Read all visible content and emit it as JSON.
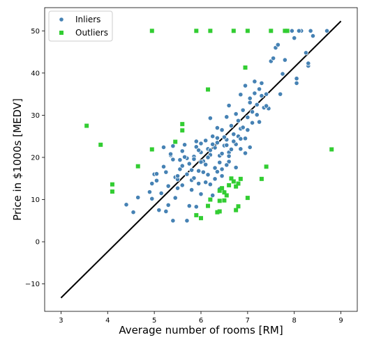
{
  "chart_data": {
    "type": "scatter",
    "title": "",
    "xlabel": "Average number of rooms [RM]",
    "ylabel": "Price in $1000s [MEDV]",
    "xlim": [
      2.65,
      9.35
    ],
    "ylim": [
      -16.5,
      55.5
    ],
    "xticks": [
      3,
      4,
      5,
      6,
      7,
      8,
      9
    ],
    "yticks": [
      -10,
      0,
      10,
      20,
      30,
      40,
      50
    ],
    "grid": false,
    "legend_position": "top-left",
    "colors": {
      "inliers": "#4682b4",
      "outliers": "#32cd32",
      "fit_line": "#000000"
    },
    "series": [
      {
        "name": "Inliers",
        "marker": "circle",
        "points": [
          [
            4.4,
            8.8
          ],
          [
            4.55,
            7.0
          ],
          [
            4.65,
            10.5
          ],
          [
            4.9,
            11.8
          ],
          [
            4.95,
            13.8
          ],
          [
            5.0,
            16.0
          ],
          [
            5.05,
            14.5
          ],
          [
            5.1,
            7.5
          ],
          [
            4.95,
            10.2
          ],
          [
            5.2,
            17.8
          ],
          [
            5.25,
            16.5
          ],
          [
            5.3,
            13.2
          ],
          [
            5.35,
            20.5
          ],
          [
            5.4,
            19.5
          ],
          [
            5.45,
            15.3
          ],
          [
            5.5,
            14.8
          ],
          [
            5.55,
            17.2
          ],
          [
            5.6,
            21.5
          ],
          [
            5.65,
            23.0
          ],
          [
            5.7,
            19.8
          ],
          [
            5.75,
            18.5
          ],
          [
            5.8,
            14.6
          ],
          [
            5.85,
            20.2
          ],
          [
            5.9,
            22.5
          ],
          [
            5.95,
            16.8
          ],
          [
            6.0,
            21.2
          ],
          [
            6.05,
            19.1
          ],
          [
            6.1,
            24.0
          ],
          [
            6.15,
            22.0
          ],
          [
            6.2,
            20.6
          ],
          [
            6.25,
            25.0
          ],
          [
            6.3,
            17.5
          ],
          [
            6.35,
            23.5
          ],
          [
            6.4,
            20.4
          ],
          [
            6.45,
            26.5
          ],
          [
            6.5,
            22.8
          ],
          [
            6.55,
            24.2
          ],
          [
            6.6,
            19.0
          ],
          [
            6.65,
            27.5
          ],
          [
            6.7,
            25.5
          ],
          [
            6.75,
            23.1
          ],
          [
            6.8,
            28.7
          ],
          [
            6.85,
            26.8
          ],
          [
            6.9,
            31.2
          ],
          [
            6.95,
            24.5
          ],
          [
            7.0,
            29.5
          ],
          [
            7.05,
            33.0
          ],
          [
            7.1,
            30.8
          ],
          [
            7.15,
            35.2
          ],
          [
            7.2,
            32.5
          ],
          [
            7.25,
            36.2
          ],
          [
            7.3,
            34.6
          ],
          [
            7.35,
            31.8
          ],
          [
            7.4,
            35.0
          ],
          [
            7.5,
            42.8
          ],
          [
            7.6,
            46.0
          ],
          [
            7.7,
            35.0
          ],
          [
            7.75,
            39.8
          ],
          [
            7.8,
            43.1
          ],
          [
            7.85,
            50.0
          ],
          [
            7.95,
            50.0
          ],
          [
            8.0,
            48.3
          ],
          [
            8.05,
            38.7
          ],
          [
            8.15,
            50.0
          ],
          [
            8.25,
            44.8
          ],
          [
            8.3,
            41.7
          ],
          [
            8.35,
            50.0
          ],
          [
            8.4,
            48.8
          ],
          [
            8.7,
            50.0
          ],
          [
            5.3,
            8.7
          ],
          [
            5.45,
            10.4
          ],
          [
            5.5,
            12.7
          ],
          [
            5.6,
            13.4
          ],
          [
            5.7,
            5.0
          ],
          [
            5.75,
            8.5
          ],
          [
            5.8,
            12.3
          ],
          [
            5.9,
            8.3
          ],
          [
            5.95,
            13.8
          ],
          [
            6.0,
            11.3
          ],
          [
            6.1,
            14.1
          ],
          [
            6.2,
            13.6
          ],
          [
            6.25,
            11.0
          ],
          [
            6.3,
            14.9
          ],
          [
            6.4,
            12.5
          ],
          [
            6.45,
            15.6
          ],
          [
            6.5,
            11.8
          ],
          [
            5.4,
            5.0
          ],
          [
            5.25,
            7.2
          ],
          [
            5.15,
            11.5
          ],
          [
            5.6,
            18.0
          ],
          [
            5.7,
            16.0
          ],
          [
            5.8,
            17.0
          ],
          [
            5.9,
            23.8
          ],
          [
            6.0,
            23.3
          ],
          [
            6.1,
            18.3
          ],
          [
            6.2,
            21.7
          ],
          [
            6.3,
            22.3
          ],
          [
            6.4,
            18.8
          ],
          [
            6.5,
            24.8
          ],
          [
            6.6,
            21.2
          ],
          [
            6.7,
            23.8
          ],
          [
            6.8,
            25.0
          ],
          [
            6.9,
            27.1
          ],
          [
            7.0,
            26.5
          ],
          [
            7.1,
            28.2
          ],
          [
            7.2,
            30.1
          ],
          [
            6.55,
            29.6
          ],
          [
            6.6,
            32.3
          ],
          [
            6.75,
            30.3
          ],
          [
            6.95,
            37.0
          ],
          [
            7.15,
            38.0
          ],
          [
            6.2,
            29.3
          ],
          [
            6.35,
            27.0
          ],
          [
            6.0,
            18.9
          ],
          [
            6.05,
            16.5
          ],
          [
            5.95,
            21.7
          ],
          [
            6.15,
            20.0
          ],
          [
            6.25,
            23.1
          ],
          [
            6.45,
            20.9
          ],
          [
            6.55,
            22.9
          ],
          [
            6.65,
            21.9
          ],
          [
            6.85,
            24.4
          ],
          [
            7.05,
            22.4
          ],
          [
            5.55,
            19.4
          ],
          [
            5.65,
            20.1
          ],
          [
            5.85,
            19.6
          ],
          [
            6.35,
            24.6
          ],
          [
            6.55,
            18.2
          ],
          [
            6.75,
            17.6
          ],
          [
            6.95,
            21.0
          ],
          [
            5.85,
            15.1
          ],
          [
            6.15,
            15.9
          ],
          [
            6.35,
            16.6
          ],
          [
            6.45,
            17.2
          ],
          [
            5.05,
            16.1
          ],
          [
            5.5,
            15.6
          ],
          [
            5.2,
            22.4
          ],
          [
            5.4,
            22.7
          ],
          [
            5.35,
            20.8
          ],
          [
            7.45,
            31.6
          ],
          [
            7.3,
            37.6
          ],
          [
            7.4,
            32.2
          ],
          [
            6.85,
            34.9
          ],
          [
            7.05,
            34.0
          ],
          [
            6.6,
            20.3
          ],
          [
            6.85,
            22.0
          ],
          [
            7.25,
            28.4
          ],
          [
            7.55,
            43.5
          ],
          [
            7.65,
            46.7
          ],
          [
            8.1,
            50.0
          ],
          [
            8.3,
            42.3
          ],
          [
            8.05,
            37.6
          ],
          [
            7.8,
            50.0
          ]
        ]
      },
      {
        "name": "Outliers",
        "marker": "square",
        "points": [
          [
            3.55,
            27.5
          ],
          [
            3.85,
            23.0
          ],
          [
            4.1,
            13.6
          ],
          [
            4.1,
            11.9
          ],
          [
            4.65,
            17.9
          ],
          [
            4.95,
            21.9
          ],
          [
            4.95,
            50.0
          ],
          [
            5.45,
            23.7
          ],
          [
            5.6,
            27.9
          ],
          [
            5.6,
            26.4
          ],
          [
            5.9,
            6.3
          ],
          [
            5.9,
            50.0
          ],
          [
            6.0,
            5.6
          ],
          [
            6.15,
            36.1
          ],
          [
            6.15,
            8.5
          ],
          [
            6.2,
            50.0
          ],
          [
            6.2,
            10.0
          ],
          [
            6.35,
            7.0
          ],
          [
            6.4,
            7.2
          ],
          [
            6.4,
            9.7
          ],
          [
            6.45,
            12.7
          ],
          [
            6.5,
            11.7
          ],
          [
            6.55,
            11.0
          ],
          [
            6.6,
            13.4
          ],
          [
            6.65,
            15.0
          ],
          [
            6.7,
            50.0
          ],
          [
            6.7,
            14.3
          ],
          [
            6.75,
            13.1
          ],
          [
            6.8,
            8.4
          ],
          [
            6.8,
            13.8
          ],
          [
            6.85,
            14.9
          ],
          [
            6.95,
            41.3
          ],
          [
            7.0,
            50.0
          ],
          [
            7.0,
            10.4
          ],
          [
            7.3,
            14.9
          ],
          [
            7.4,
            17.8
          ],
          [
            7.5,
            50.0
          ],
          [
            7.8,
            50.0
          ],
          [
            7.85,
            50.0
          ],
          [
            8.8,
            21.9
          ],
          [
            6.75,
            7.5
          ],
          [
            6.4,
            12.1
          ],
          [
            6.5,
            9.8
          ]
        ]
      }
    ],
    "fit_line": {
      "x": [
        3.0,
        9.0
      ],
      "y": [
        -13.3,
        52.3
      ]
    }
  }
}
